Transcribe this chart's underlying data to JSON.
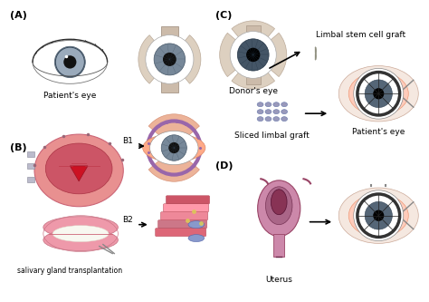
{
  "background_color": "#ffffff",
  "figsize": [
    4.74,
    3.33
  ],
  "dpi": 100,
  "labels": {
    "A": "(A)",
    "B": "(B)",
    "C": "(C)",
    "D": "(D)",
    "patients_eye_A": "Patient's eye",
    "salivary": "salivary gland transplantation",
    "donors_eye": "Donor's eye",
    "limbal_stem": "Limbal stem cell graft",
    "sliced_limbal": "Sliced limbal graft",
    "patients_eye_C": "Patient's eye",
    "uterus": "Uterus",
    "B1": "B1",
    "B2": "B2"
  },
  "font_size_section": 8,
  "font_size_label": 6.5,
  "font_size_caption": 5.5
}
